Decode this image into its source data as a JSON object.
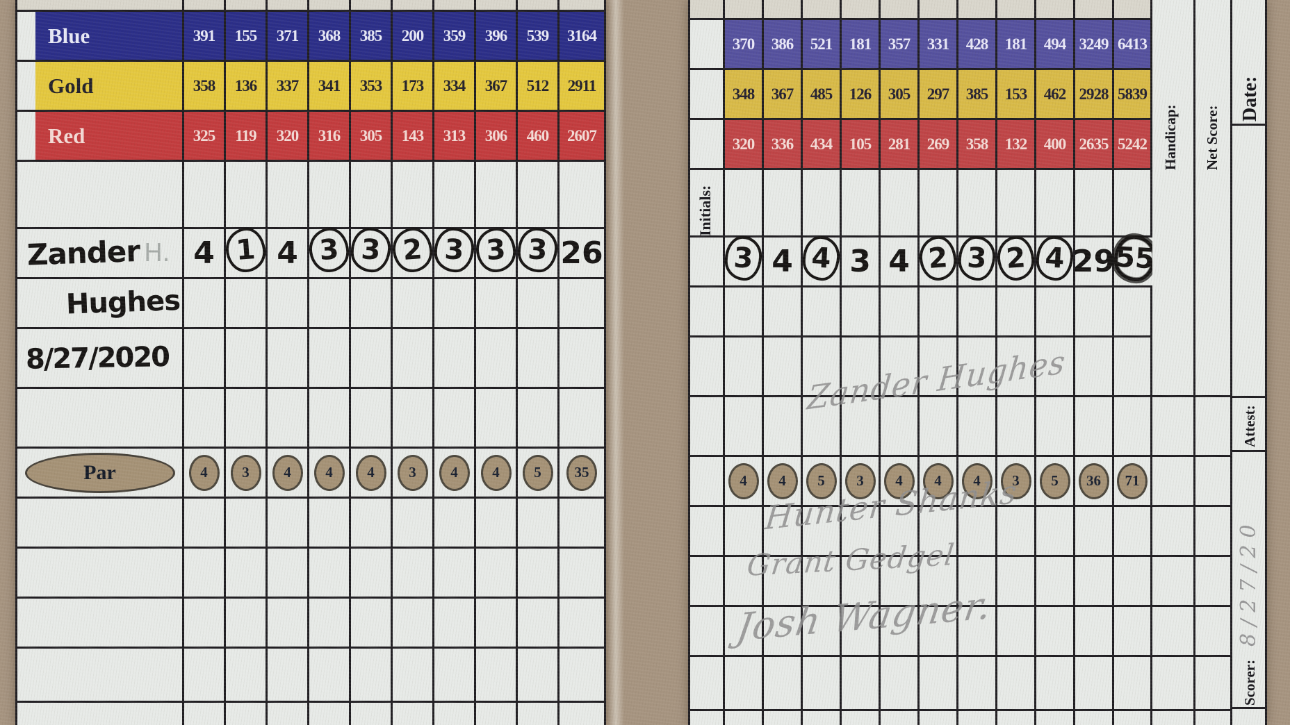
{
  "scorecard": {
    "colors": {
      "background_tan": "#a69480",
      "cell_tan": "#a59479",
      "paper": "#e7eae7",
      "grid_line": "#201e22",
      "marker_ink": "#171514",
      "pencil": "#8f8f90",
      "par_circle_fill": "#a59276",
      "par_text": "#1b2231"
    },
    "front": {
      "top_rows": [
        {
          "label": "Blue",
          "bg": "#2b2e88",
          "fg": "#e8e9f6",
          "values": [
            "391",
            "155",
            "371",
            "368",
            "385",
            "200",
            "359",
            "396",
            "539",
            "3164"
          ]
        },
        {
          "label": "Gold",
          "bg": "#e4c83f",
          "fg": "#23212a",
          "values": [
            "358",
            "136",
            "337",
            "341",
            "353",
            "173",
            "334",
            "367",
            "512",
            "2911"
          ]
        },
        {
          "label": "Red",
          "bg": "#c23c3e",
          "fg": "#f4dbd6",
          "values": [
            "325",
            "119",
            "320",
            "316",
            "305",
            "143",
            "313",
            "306",
            "460",
            "2607"
          ]
        }
      ],
      "player_row": {
        "name": "Zander",
        "name_suffix": "H.",
        "scores": [
          {
            "v": "4"
          },
          {
            "v": "1",
            "circled": true
          },
          {
            "v": "4"
          },
          {
            "v": "3",
            "circled": true
          },
          {
            "v": "3",
            "circled": true
          },
          {
            "v": "2",
            "circled": true
          },
          {
            "v": "3",
            "circled": true
          },
          {
            "v": "3",
            "circled": true
          },
          {
            "v": "3",
            "circled": true
          },
          {
            "v": "26"
          }
        ]
      },
      "name_line2": "Hughes",
      "date": "8/27/2020",
      "par_row": {
        "label": "Par",
        "values": [
          "4",
          "3",
          "4",
          "4",
          "4",
          "3",
          "4",
          "4",
          "5",
          "35"
        ]
      }
    },
    "back": {
      "initials_label": "Initials:",
      "top_rows": [
        {
          "bg": "#55519e",
          "fg": "#e9e8f8",
          "values": [
            "",
            "370",
            "386",
            "521",
            "181",
            "357",
            "331",
            "428",
            "181",
            "494",
            "3249",
            "6413"
          ]
        },
        {
          "bg": "#d8ba48",
          "fg": "#262230",
          "values": [
            "",
            "348",
            "367",
            "485",
            "126",
            "305",
            "297",
            "385",
            "153",
            "462",
            "2928",
            "5839"
          ]
        },
        {
          "bg": "#bf4547",
          "fg": "#f4dbd6",
          "values": [
            "",
            "320",
            "336",
            "434",
            "105",
            "281",
            "269",
            "358",
            "132",
            "400",
            "2635",
            "5242"
          ]
        }
      ],
      "scores": [
        {
          "v": ""
        },
        {
          "v": "3",
          "circled": true
        },
        {
          "v": "4"
        },
        {
          "v": "4",
          "circled": true
        },
        {
          "v": "3"
        },
        {
          "v": "4"
        },
        {
          "v": "2",
          "circled": true
        },
        {
          "v": "3",
          "circled": true
        },
        {
          "v": "2",
          "circled": true
        },
        {
          "v": "4",
          "circled": true
        },
        {
          "v": "29"
        },
        {
          "v": "55",
          "circled": true,
          "heavy": true
        }
      ],
      "par_values": [
        "",
        "4",
        "4",
        "5",
        "3",
        "4",
        "4",
        "4",
        "3",
        "5",
        "36",
        "71"
      ],
      "signatures": [
        "Zander Hughes",
        "Hunter Shanks",
        "Grant Gedgel",
        "Josh Wagner."
      ],
      "side_labels": {
        "handicap": "Handicap:",
        "net_score": "Net Score:",
        "date": "Date:",
        "attest": "Attest:",
        "scorer": "Scorer:"
      },
      "scorer_note": "8/27/20"
    }
  }
}
